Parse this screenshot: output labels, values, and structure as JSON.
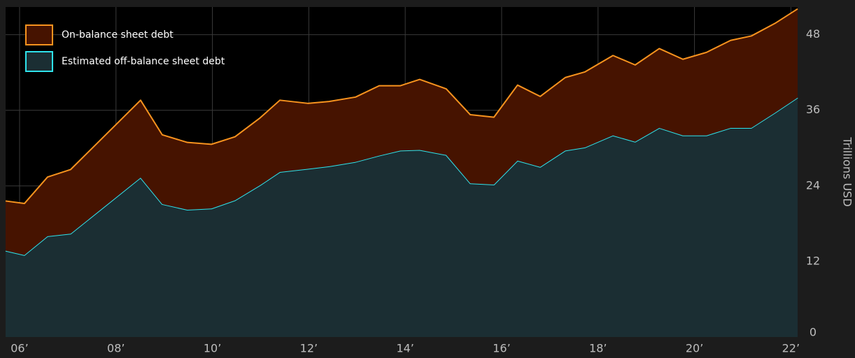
{
  "chart_data": {
    "type": "stacked_area",
    "y_axis_label": "Trillions USD",
    "x": [
      2005.71,
      2006.1,
      2006.58,
      2007.06,
      2008.51,
      2008.96,
      2009.48,
      2009.98,
      2010.47,
      2010.99,
      2011.4,
      2011.98,
      2012.42,
      2012.97,
      2013.46,
      2013.9,
      2014.3,
      2014.85,
      2015.35,
      2015.84,
      2016.33,
      2016.8,
      2017.32,
      2017.73,
      2018.31,
      2018.77,
      2019.27,
      2019.76,
      2020.25,
      2020.75,
      2021.18,
      2021.67,
      2022.14
    ],
    "series": [
      {
        "name": "Estimated off-balance sheet debt",
        "color": "#2fe3ec",
        "fill": "#1b2e33",
        "values": [
          13.7,
          13.0,
          16.0,
          16.4,
          25.3,
          21.1,
          20.2,
          20.4,
          21.7,
          24.1,
          26.2,
          26.7,
          27.1,
          27.8,
          28.8,
          29.6,
          29.7,
          28.9,
          24.4,
          24.2,
          28.0,
          27.0,
          29.6,
          30.1,
          32.0,
          31.0,
          33.2,
          32.0,
          32.0,
          33.2,
          33.2,
          35.6,
          38.0
        ]
      },
      {
        "name": "On-balance sheet debt",
        "color": "#f7931e",
        "fill": "#461300",
        "values": [
          7.9,
          8.2,
          9.4,
          10.2,
          12.3,
          11.0,
          10.7,
          10.2,
          10.1,
          10.7,
          11.4,
          10.4,
          10.3,
          10.3,
          11.1,
          10.3,
          11.2,
          10.5,
          10.9,
          10.7,
          12.0,
          11.2,
          11.6,
          12.0,
          12.7,
          12.2,
          12.6,
          12.1,
          13.2,
          13.9,
          14.6,
          14.2,
          14.1
        ]
      }
    ],
    "xlim": [
      2005.71,
      2022.14
    ],
    "xticks": [
      {
        "value": 2006,
        "label": "06’"
      },
      {
        "value": 2008,
        "label": "08’"
      },
      {
        "value": 2010,
        "label": "10’"
      },
      {
        "value": 2012,
        "label": "12’"
      },
      {
        "value": 2014,
        "label": "14’"
      },
      {
        "value": 2016,
        "label": "16’"
      },
      {
        "value": 2018,
        "label": "18’"
      },
      {
        "value": 2020,
        "label": "20’"
      },
      {
        "value": 2022,
        "label": "22’"
      }
    ],
    "ylim": [
      0,
      52.4
    ],
    "yticks": [
      0,
      12,
      24,
      36,
      48
    ],
    "grid": true,
    "legend": "top-left"
  }
}
